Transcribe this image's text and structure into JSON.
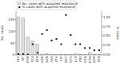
{
  "chart_data": {
    "type": "bar",
    "categories": [
      "INH",
      "RIF",
      "EMB",
      "PZA",
      "STR",
      "AMK",
      "KAN",
      "PAS",
      "ETH",
      "CIP",
      "MXF",
      "OFX",
      "CLR",
      "PTO",
      "CSN",
      "CPM",
      "AZM",
      "RFB"
    ],
    "series": [
      {
        "name": "No. cases with acquired resistance",
        "type": "bar",
        "color": "#e0e0e0",
        "values": [
          160,
          155,
          75,
          60,
          45,
          3,
          5,
          3,
          2,
          2,
          2,
          2,
          4,
          2,
          1,
          10,
          1,
          1
        ]
      },
      {
        "name": "% cases with acquired resistance",
        "type": "scatter",
        "marker": "square",
        "color": "#111111",
        "axis": "y2",
        "values": [
          0.02,
          0.019,
          0.008,
          0.28,
          0.055,
          0.55,
          0.65,
          0.38,
          0.42,
          0.28,
          1.05,
          0.52,
          0.28,
          0.28,
          0.18,
          0.18,
          0.12,
          0.12
        ]
      }
    ],
    "ylabel": "No. cases",
    "y2label": "% cases",
    "ylim": [
      0,
      185
    ],
    "yticks": [
      0,
      50,
      100,
      150
    ],
    "y2lim": [
      0,
      1.15
    ],
    "y2ticks": [
      {
        "value": 0.0,
        "label": "0.00"
      },
      0.25,
      {
        "value": 0.5,
        "label": "0.50"
      },
      0.75,
      {
        "value": 1.0,
        "label": "1.00"
      }
    ],
    "legend": "upper left"
  }
}
